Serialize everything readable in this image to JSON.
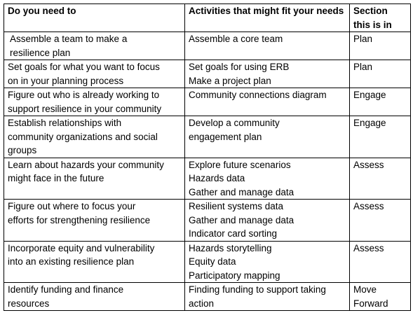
{
  "headers": {
    "col1": "Do you need to",
    "col2_line1": "Activities that might fit your",
    "col2_line2": "needs",
    "col3_line1": "Section",
    "col3_line2": "this is in"
  },
  "rows": [
    {
      "need": [
        "Assemble a team to make a",
        "resilience plan"
      ],
      "activities": [
        "Assemble a core team"
      ],
      "section": [
        "Plan"
      ]
    },
    {
      "need": [
        "Set goals for what you want to focus",
        "on in your planning process"
      ],
      "activities": [
        "Set goals for using ERB",
        "Make a project plan"
      ],
      "section": [
        "Plan"
      ]
    },
    {
      "need": [
        "Figure out who is already working to",
        "support resilience in your community"
      ],
      "activities": [
        "Community connections diagram"
      ],
      "section": [
        "Engage"
      ]
    },
    {
      "need": [
        "Establish relationships with",
        "community organizations and social",
        "groups"
      ],
      "activities": [
        "Develop a community",
        "engagement plan"
      ],
      "section": [
        "Engage"
      ]
    },
    {
      "need": [
        "Learn about hazards your community",
        "might face in the future"
      ],
      "activities": [
        "Explore future scenarios",
        "Hazards data",
        "Gather and manage data"
      ],
      "section": [
        "Assess"
      ]
    },
    {
      "need": [
        "Figure out where to focus your",
        "efforts for strengthening resilience"
      ],
      "activities": [
        "Resilient systems data",
        "Gather and manage data",
        "Indicator card sorting"
      ],
      "section": [
        "Assess"
      ]
    },
    {
      "need": [
        "Incorporate equity and vulnerability",
        "into an existing resilience plan"
      ],
      "activities": [
        "Hazards storytelling",
        "Equity data",
        "Participatory mapping"
      ],
      "section": [
        "Assess"
      ]
    },
    {
      "need": [
        "Identify funding and finance",
        "resources"
      ],
      "activities": [
        "Finding funding to support taking",
        "action"
      ],
      "section": [
        "Move",
        "Forward"
      ]
    }
  ]
}
